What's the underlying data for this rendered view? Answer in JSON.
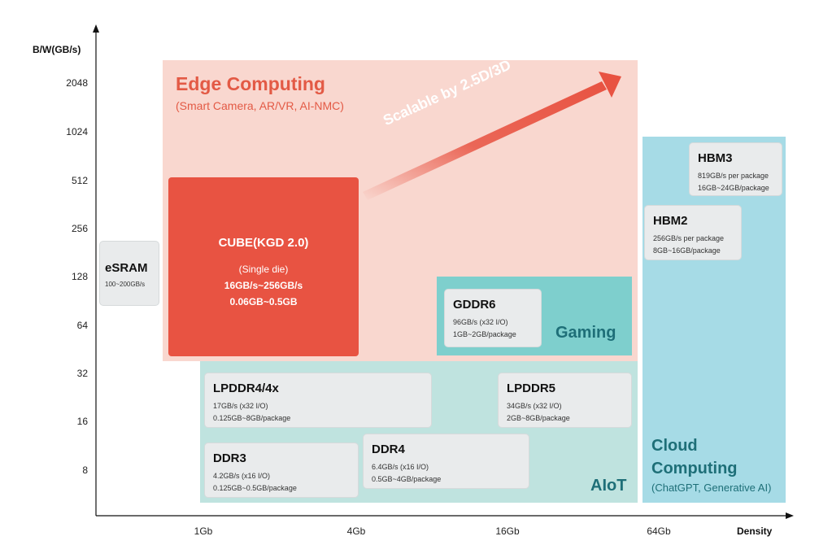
{
  "axes": {
    "y_label": "B/W(GB/s)",
    "x_label": "Density",
    "y_ticks": [
      "2048",
      "1024",
      "512",
      "256",
      "128",
      "64",
      "32",
      "16",
      "8"
    ],
    "x_ticks": [
      "1Gb",
      "4Gb",
      "16Gb",
      "64Gb"
    ]
  },
  "regions": {
    "edge": {
      "title": "Edge Computing",
      "subtitle": "(Smart Camera, AR/VR, AI-NMC)"
    },
    "gaming": {
      "title": "Gaming"
    },
    "aiot": {
      "title": "AIoT"
    },
    "cloud": {
      "title_line1": "Cloud",
      "title_line2": "Computing",
      "subtitle": "(ChatGPT, Generative AI)"
    }
  },
  "arrow": {
    "label": "Scalable by 2.5D/3D",
    "color": "#e85342"
  },
  "cube": {
    "name": "CUBE(KGD 2.0)",
    "line1": "(Single die)",
    "line2": "16GB/s~256GB/s",
    "line3": "0.06GB~0.5GB"
  },
  "cards": {
    "esram": {
      "name": "eSRAM",
      "line1": "100~200GB/s"
    },
    "gddr6": {
      "name": "GDDR6",
      "line1": "96GB/s (x32 I/O)",
      "line2": "1GB~2GB/package"
    },
    "lpddr4": {
      "name": "LPDDR4/4x",
      "line1": "17GB/s (x32 I/O)",
      "line2": "0.125GB~8GB/package"
    },
    "lpddr5": {
      "name": "LPDDR5",
      "line1": "34GB/s (x32 I/O)",
      "line2": "2GB~8GB/package"
    },
    "ddr3": {
      "name": "DDR3",
      "line1": "4.2GB/s (x16 I/O)",
      "line2": "0.125GB~0.5GB/package"
    },
    "ddr4": {
      "name": "DDR4",
      "line1": "6.4GB/s (x16 I/O)",
      "line2": "0.5GB~4GB/package"
    },
    "hbm2": {
      "name": "HBM2",
      "line1": "256GB/s per package",
      "line2": "8GB~16GB/package"
    },
    "hbm3": {
      "name": "HBM3",
      "line1": "819GB/s per package",
      "line2": "16GB~24GB/package"
    }
  },
  "colors": {
    "edge_bg": "#f9d7cf",
    "edge_text": "#e35a45",
    "aiot_bg": "#bfe3df",
    "gaming_bg": "#7ecfcd",
    "cloud_bg": "#a6dbe6",
    "teal_text": "#1e6f78",
    "cube_bg": "#e85342"
  }
}
